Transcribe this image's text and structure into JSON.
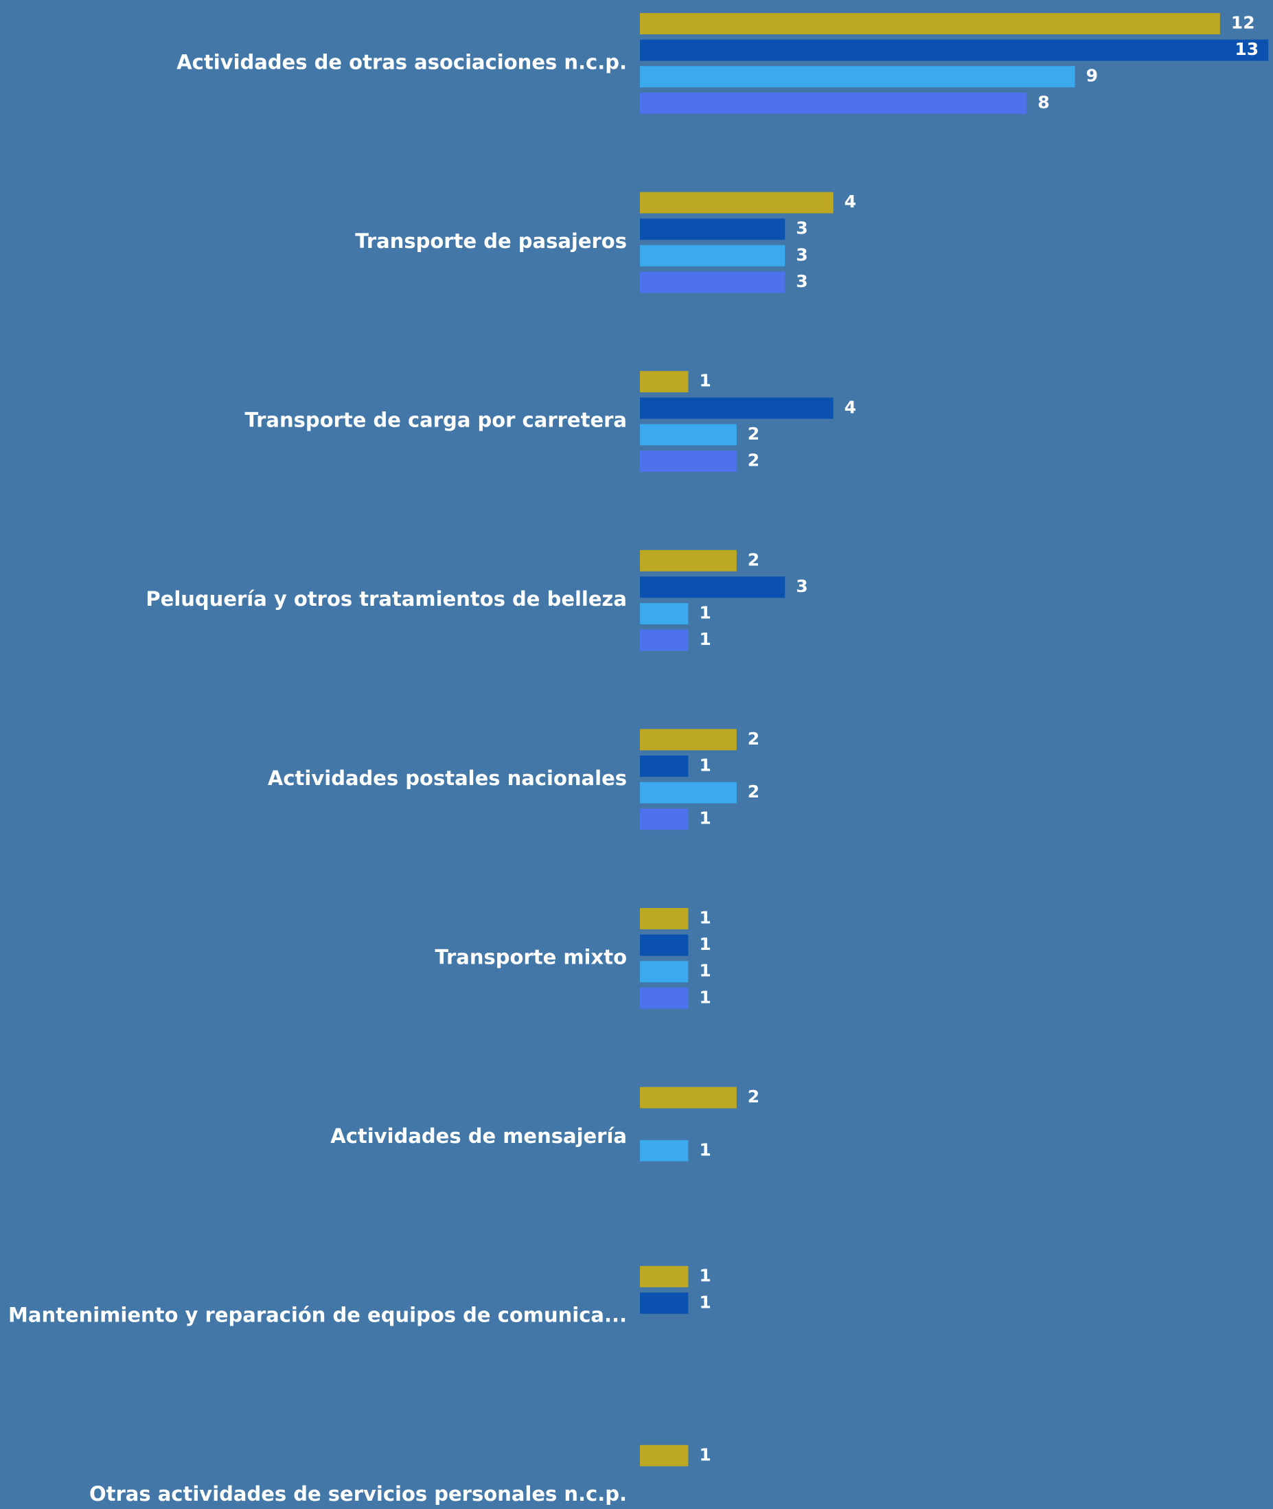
{
  "chart_data": {
    "type": "bar",
    "orientation": "horizontal",
    "categories": [
      "Actividades de otras asociaciones n.c.p.",
      "Transporte de pasajeros",
      "Transporte de carga por carretera",
      "Peluquería y otros tratamientos de belleza",
      "Actividades postales nacionales",
      "Transporte mixto",
      "Actividades de mensajería",
      "Mantenimiento y reparación de equipos de comunica...",
      "Otras actividades de servicios personales n.c.p."
    ],
    "series": [
      {
        "color": "#bca822",
        "values": [
          12,
          4,
          1,
          2,
          2,
          1,
          2,
          1,
          1
        ]
      },
      {
        "color": "#0b52b0",
        "values": [
          13,
          3,
          4,
          3,
          1,
          1,
          null,
          1,
          null
        ]
      },
      {
        "color": "#3aa9ee",
        "values": [
          9,
          3,
          2,
          1,
          2,
          1,
          1,
          null,
          null
        ]
      },
      {
        "color": "#4d72ec",
        "values": [
          8,
          3,
          2,
          1,
          1,
          1,
          null,
          null,
          null
        ]
      }
    ],
    "xlim": [
      0,
      13
    ],
    "grid": false,
    "legend": "none",
    "data_labels": true
  },
  "colors": {
    "background": "#4277a8",
    "text": "#ffffff"
  }
}
